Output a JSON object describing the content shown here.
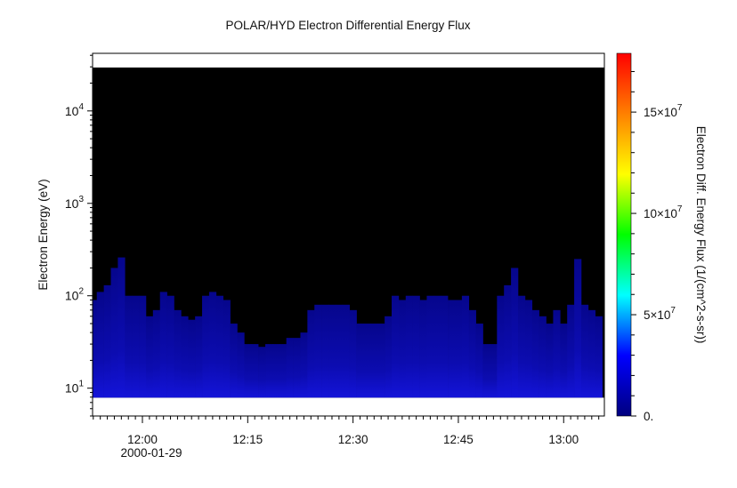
{
  "chart_data": {
    "type": "heatmap",
    "title": "POLAR/HYD  Electron Differential Energy Flux",
    "xlabel": "",
    "date_label": "2000-01-29",
    "ylabel": "Electron Energy (eV)",
    "colorbar_label": "Electron Diff. Energy Flux (1/(cm^2-s-sr))",
    "x_range": [
      "11:52.9",
      "13:05.8"
    ],
    "x_ticks": [
      "12:00",
      "12:15",
      "12:30",
      "12:45",
      "13:00"
    ],
    "y_scale": "log",
    "y_range": [
      5,
      42000
    ],
    "y_ticks": [
      {
        "base": "10",
        "exp": "1",
        "value": 10
      },
      {
        "base": "10",
        "exp": "2",
        "value": 100
      },
      {
        "base": "10",
        "exp": "3",
        "value": 1000
      },
      {
        "base": "10",
        "exp": "4",
        "value": 10000
      }
    ],
    "data_energy_range_eV": [
      7.9,
      29500
    ],
    "color_range": [
      0,
      179000000
    ],
    "colorbar_ticks": [
      {
        "mant": "0.",
        "exp": "",
        "value": 0
      },
      {
        "mant": "5×10",
        "exp": "7",
        "value": 50000000
      },
      {
        "mant": "10×10",
        "exp": "7",
        "value": 100000000
      },
      {
        "mant": "15×10",
        "exp": "7",
        "value": 150000000
      }
    ],
    "colormap": [
      "#00007f",
      "#0000ff",
      "#00ffff",
      "#00ff00",
      "#ffff00",
      "#ff8000",
      "#ff0000"
    ],
    "fill_color": "#0a0aa0",
    "background_no_flux": "#000000",
    "start_minute": "11:53",
    "upper_flux_energy_eV_per_minute": [
      90,
      110,
      130,
      200,
      260,
      100,
      100,
      100,
      60,
      70,
      110,
      100,
      70,
      60,
      55,
      60,
      100,
      110,
      100,
      90,
      50,
      40,
      30,
      30,
      28,
      30,
      30,
      30,
      35,
      35,
      40,
      70,
      80,
      80,
      80,
      80,
      80,
      70,
      50,
      50,
      50,
      50,
      60,
      100,
      90,
      100,
      100,
      90,
      100,
      100,
      100,
      90,
      90,
      100,
      70,
      50,
      30,
      30,
      100,
      130,
      200,
      100,
      90,
      70,
      60,
      50,
      70,
      50,
      80,
      250,
      80,
      70,
      60
    ]
  }
}
